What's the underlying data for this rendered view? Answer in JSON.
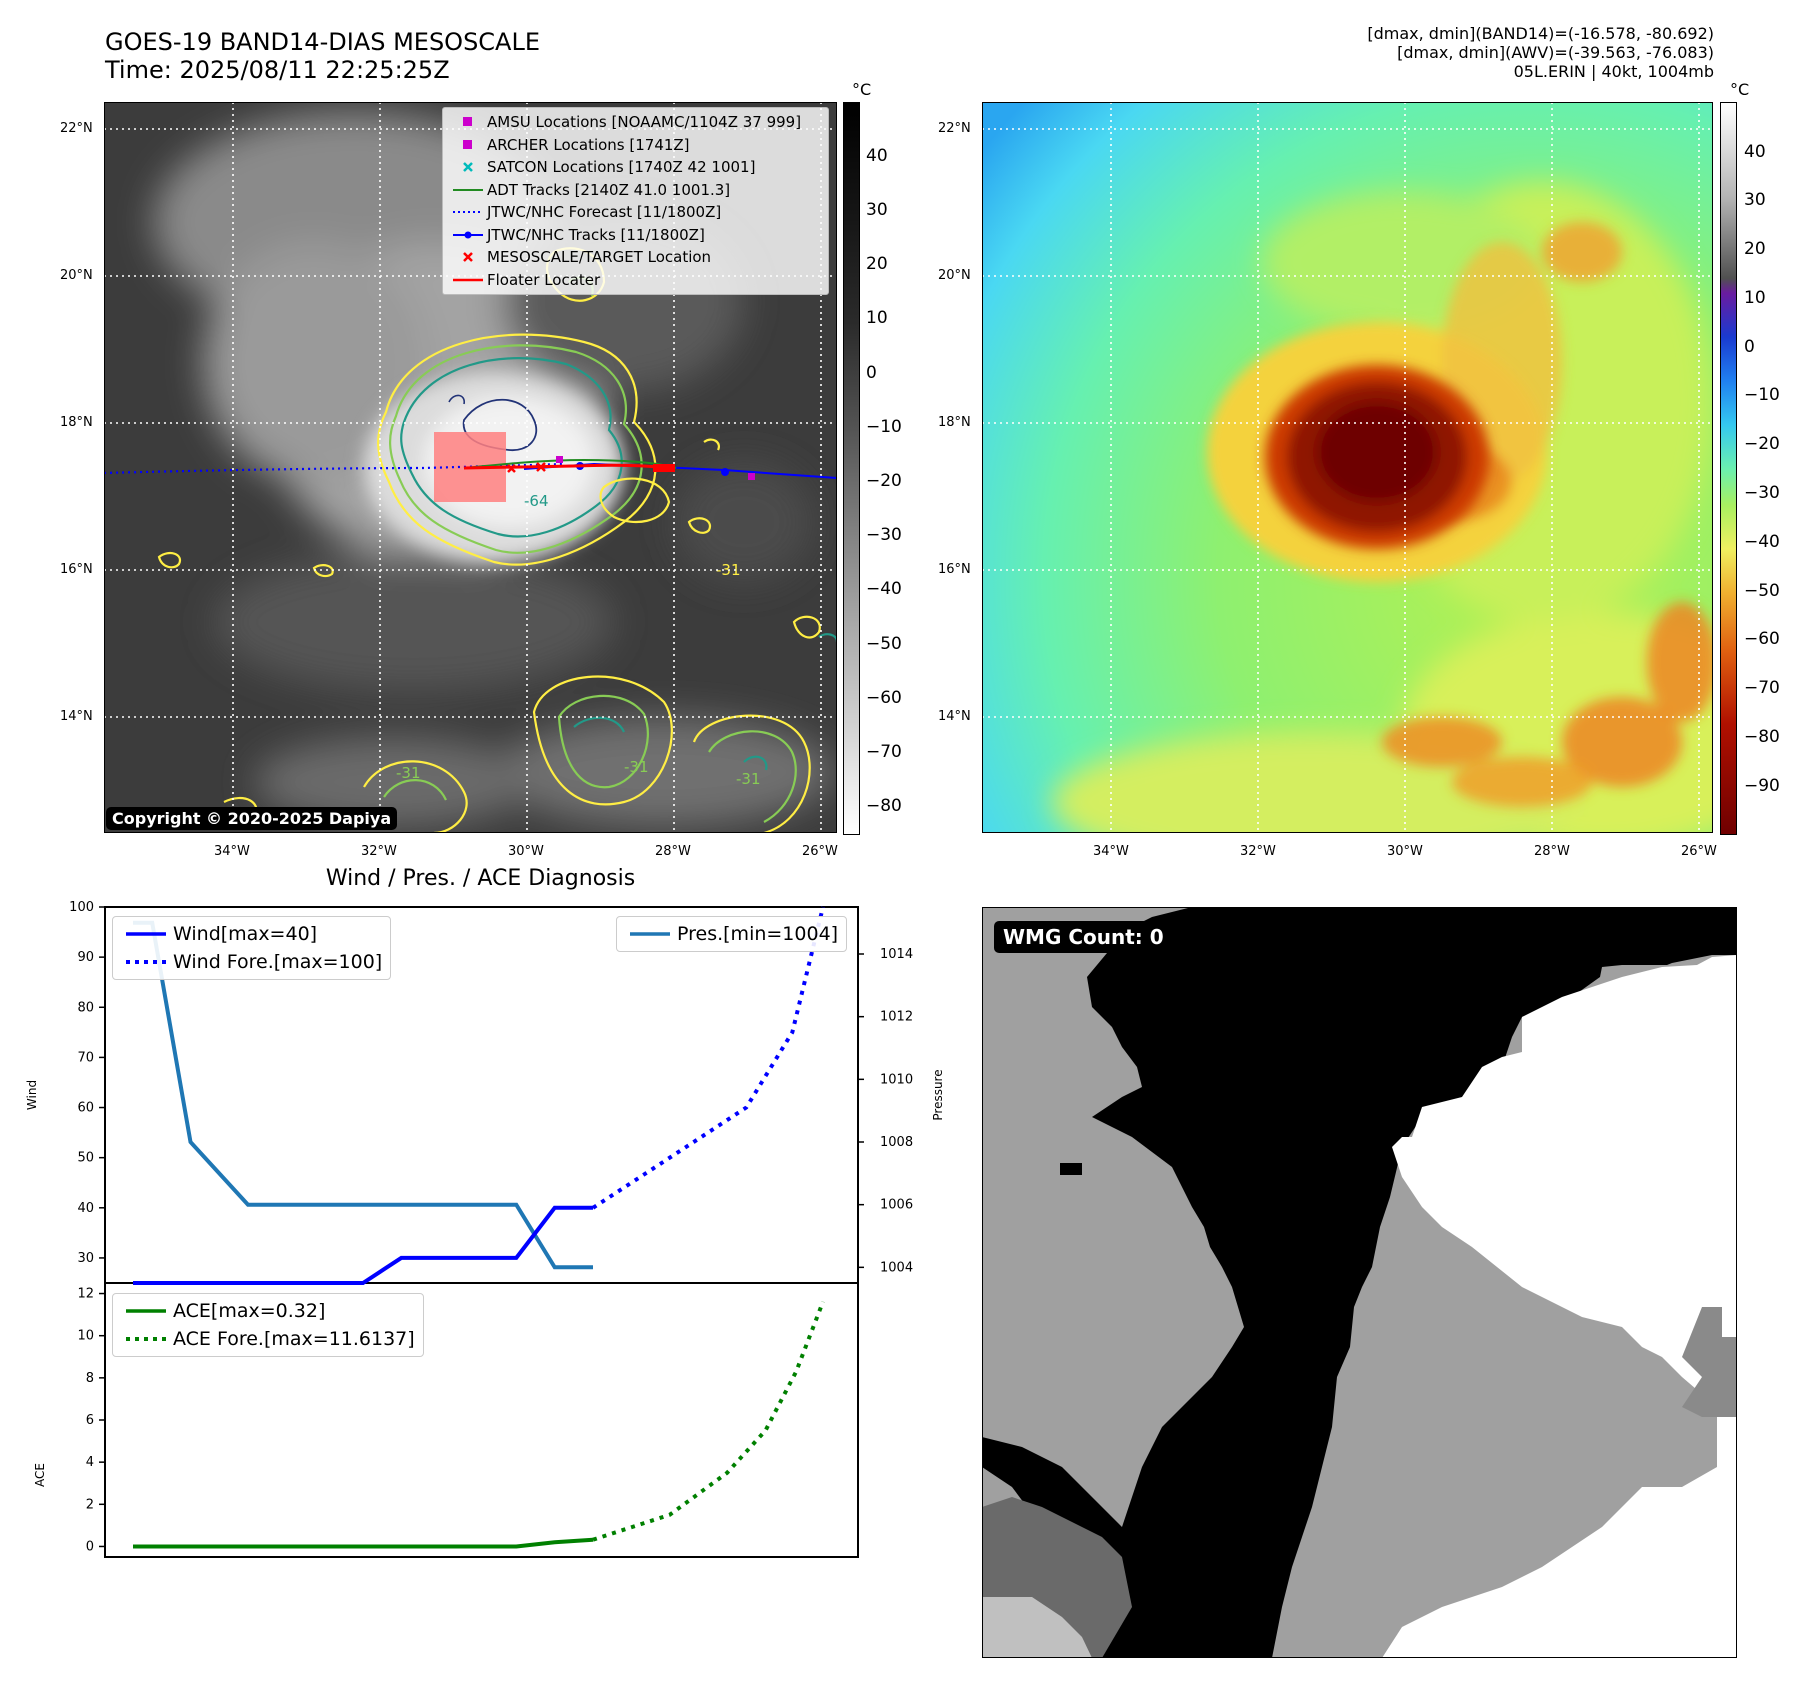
{
  "header": {
    "title_line1": "GOES-19 BAND14-DIAS MESOSCALE",
    "title_line2": "Time: 2025/08/11 22:25:25Z",
    "info_line1": "[dmax, dmin](BAND14)=(-16.578, -80.692)",
    "info_line2": "[dmax, dmin](AWV)=(-39.563, -76.083)",
    "info_line3": "05L.ERIN | 40kt, 1004mb"
  },
  "map_axes": {
    "lat_labels": [
      "22°N",
      "20°N",
      "18°N",
      "16°N",
      "14°N"
    ],
    "lon_labels": [
      "34°W",
      "32°W",
      "30°W",
      "28°W",
      "26°W"
    ]
  },
  "ir_panel": {
    "unit": "°C",
    "colorbar_ticks": [
      "40",
      "30",
      "20",
      "10",
      "0",
      "−10",
      "−20",
      "−30",
      "−40",
      "−50",
      "−60",
      "−70",
      "−80"
    ],
    "contour_labels": [
      "-64",
      "-31",
      "-31",
      "-31",
      "-31"
    ],
    "copyright": "Copyright © 2020-2025 Dapiya",
    "legend": [
      {
        "label": "AMSU Locations [NOAAMC/1104Z 37 999]",
        "icon": "magenta-square-icon"
      },
      {
        "label": "ARCHER Locations [1741Z]",
        "icon": "magenta-square-icon"
      },
      {
        "label": "SATCON Locations [1740Z 42 1001]",
        "icon": "cyan-x-icon"
      },
      {
        "label": "ADT Tracks [2140Z 41.0 1001.3]",
        "icon": "green-line-icon"
      },
      {
        "label": "JTWC/NHC Forecast [11/1800Z]",
        "icon": "blue-dotted-line-icon"
      },
      {
        "label": "JTWC/NHC Tracks [11/1800Z]",
        "icon": "blue-dot-line-icon"
      },
      {
        "label": "MESOSCALE/TARGET Location",
        "icon": "red-x-icon"
      },
      {
        "label": "Floater Locater",
        "icon": "red-line-icon"
      }
    ]
  },
  "wv_panel": {
    "unit": "°C",
    "colorbar_ticks": [
      "40",
      "30",
      "20",
      "10",
      "0",
      "−10",
      "−20",
      "−30",
      "−40",
      "−50",
      "−60",
      "−70",
      "−80",
      "−90"
    ]
  },
  "diag_panel": {
    "title": "Wind / Pres. / ACE Diagnosis",
    "wind_label": "Wind",
    "pres_label": "Pressure",
    "ace_label": "ACE",
    "wind_legend": [
      "Wind[max=40]",
      "Wind Fore.[max=100]"
    ],
    "pres_legend": "Pres.[min=1004]",
    "ace_legend": [
      "ACE[max=0.32]",
      "ACE Fore.[max=11.6137]"
    ]
  },
  "wmg_panel": {
    "badge": "WMG Count: 0"
  },
  "colors": {
    "wind": "#0000ff",
    "pressure": "#1f77b4",
    "ace": "#008000",
    "track": "#0000ff",
    "floater": "#ff0000",
    "contour_yellow": "#ffee44",
    "contour_green": "#88cc55",
    "contour_teal": "#229988",
    "contour_navy": "#223377"
  },
  "chart_data": [
    {
      "type": "line",
      "title": "Wind / Pres. / ACE Diagnosis",
      "ylabel": "Wind",
      "ylim": [
        25,
        100
      ],
      "yticks": [
        30,
        40,
        50,
        60,
        70,
        80,
        90,
        100
      ],
      "x_range": [
        0,
        18
      ],
      "series": [
        {
          "name": "Wind[max=40]",
          "style": "solid",
          "x": [
            0,
            1,
            2,
            3,
            4,
            5,
            6,
            7,
            8,
            9,
            10,
            11,
            12
          ],
          "values": [
            25,
            25,
            25,
            25,
            25,
            25,
            25,
            30,
            30,
            30,
            30,
            40,
            40
          ]
        },
        {
          "name": "Wind Fore.[max=100]",
          "style": "dotted",
          "x": [
            12,
            14,
            16,
            17.2,
            18
          ],
          "values": [
            40,
            50,
            60,
            75,
            100
          ]
        }
      ]
    },
    {
      "type": "line",
      "ylabel": "Pressure",
      "ylim": [
        1003.5,
        1015.5
      ],
      "yticks": [
        1004,
        1006,
        1008,
        1010,
        1012,
        1014
      ],
      "x_range": [
        0,
        18
      ],
      "series": [
        {
          "name": "Pres.[min=1004]",
          "style": "solid",
          "x": [
            0,
            0.5,
            1.5,
            3,
            4,
            6,
            8,
            10,
            11,
            12
          ],
          "values": [
            1015,
            1015,
            1008,
            1006,
            1006,
            1006,
            1006,
            1006,
            1004,
            1004
          ]
        }
      ]
    },
    {
      "type": "line",
      "ylabel": "ACE",
      "ylim": [
        -0.5,
        12.5
      ],
      "yticks": [
        0,
        2,
        4,
        6,
        8,
        10,
        12
      ],
      "x_range": [
        0,
        18
      ],
      "series": [
        {
          "name": "ACE[max=0.32]",
          "style": "solid",
          "x": [
            0,
            1,
            2,
            3,
            4,
            5,
            6,
            7,
            8,
            9,
            10,
            11,
            12
          ],
          "values": [
            0,
            0,
            0,
            0,
            0,
            0,
            0,
            0,
            0,
            0,
            0,
            0.2,
            0.32
          ]
        },
        {
          "name": "ACE Fore.[max=11.6137]",
          "style": "dotted",
          "x": [
            12,
            14,
            15.5,
            16.5,
            17.3,
            18
          ],
          "values": [
            0.32,
            1.5,
            3.5,
            5.5,
            8.3,
            11.6137
          ]
        }
      ]
    }
  ]
}
